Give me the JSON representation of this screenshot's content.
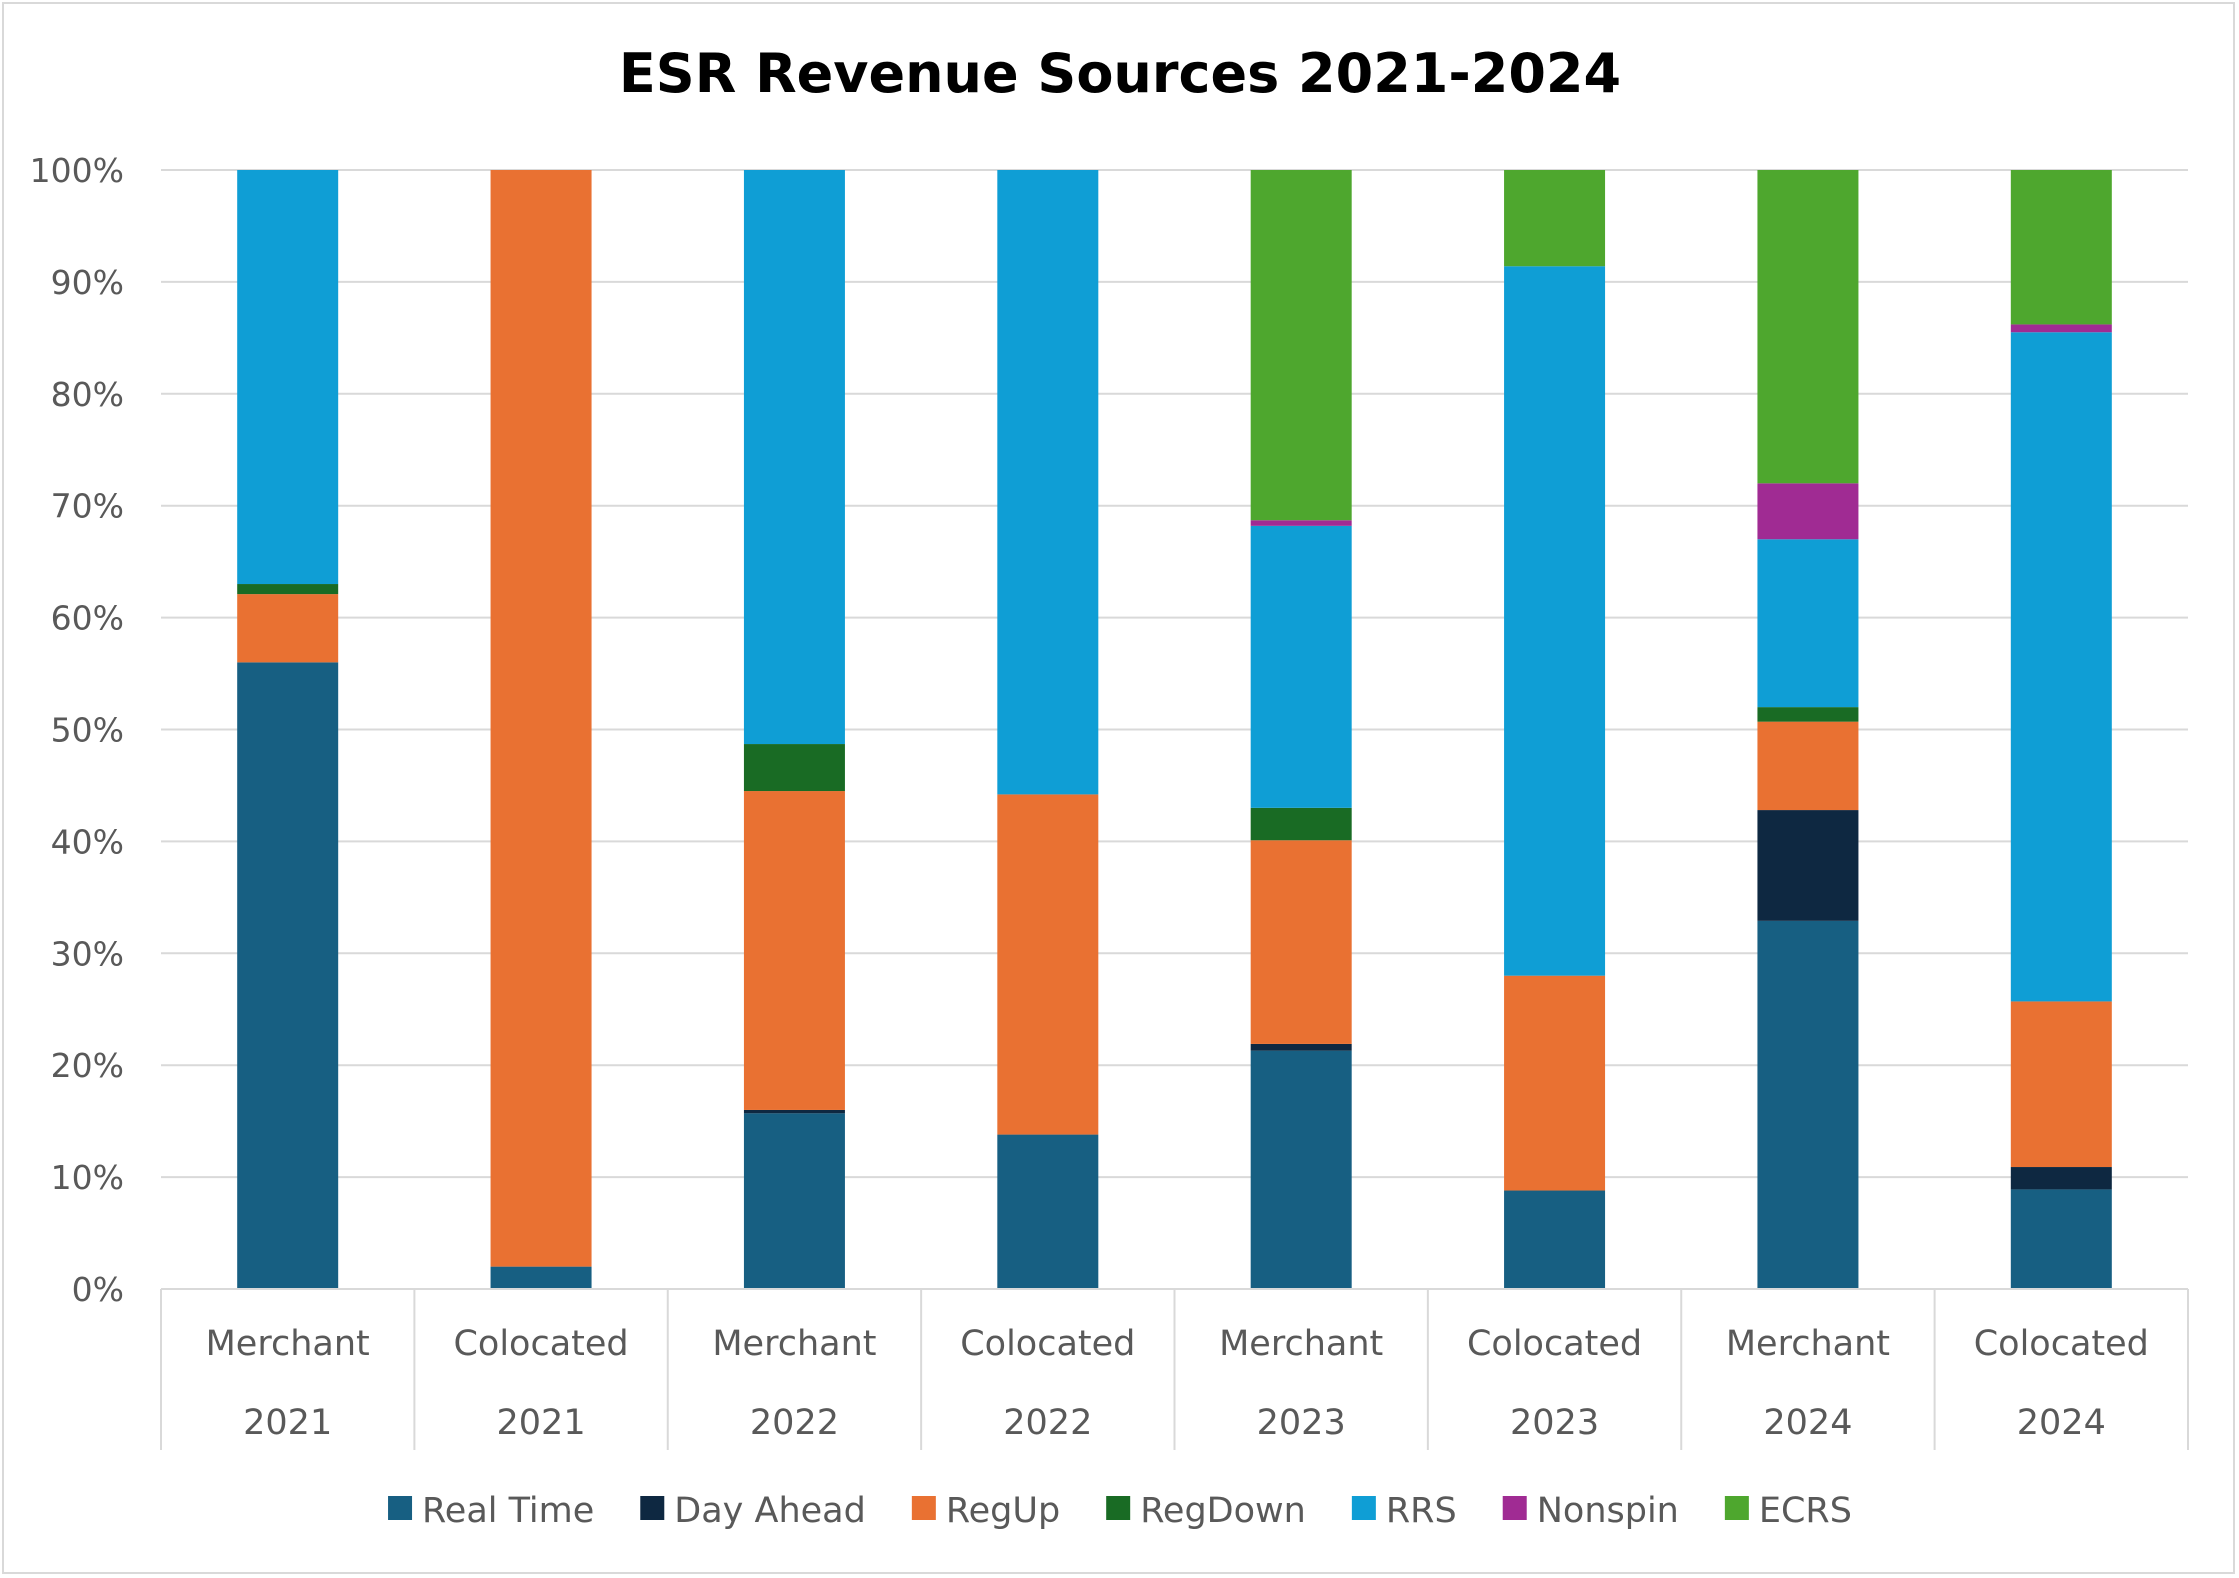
{
  "chart_data": {
    "type": "bar",
    "stacked": true,
    "title": "ESR Revenue Sources 2021-2024",
    "xlabel": "",
    "ylabel": "",
    "ylim": [
      0,
      1
    ],
    "y_ticks": [
      "0%",
      "10%",
      "20%",
      "30%",
      "40%",
      "50%",
      "60%",
      "70%",
      "80%",
      "90%",
      "100%"
    ],
    "grid": true,
    "legend_position": "bottom",
    "categories": [
      [
        "Merchant",
        "2021"
      ],
      [
        "Colocated",
        "2021"
      ],
      [
        "Merchant",
        "2022"
      ],
      [
        "Colocated",
        "2022"
      ],
      [
        "Merchant",
        "2023"
      ],
      [
        "Colocated",
        "2023"
      ],
      [
        "Merchant",
        "2024"
      ],
      [
        "Colocated",
        "2024"
      ]
    ],
    "series": [
      {
        "name": "Real Time",
        "color": "#175f82",
        "values": [
          0.56,
          0.02,
          0.157,
          0.138,
          0.213,
          0.088,
          0.329,
          0.089
        ]
      },
      {
        "name": "Day Ahead",
        "color": "#0e2841",
        "values": [
          0.0,
          0.0,
          0.003,
          0.0,
          0.006,
          0.0,
          0.099,
          0.02
        ]
      },
      {
        "name": "RegUp",
        "color": "#e97132",
        "values": [
          0.061,
          0.98,
          0.285,
          0.304,
          0.182,
          0.192,
          0.079,
          0.148
        ]
      },
      {
        "name": "RegDown",
        "color": "#196b24",
        "values": [
          0.009,
          0.0,
          0.042,
          0.0,
          0.029,
          0.0,
          0.013,
          0.0
        ]
      },
      {
        "name": "RRS",
        "color": "#0f9ed5",
        "values": [
          0.37,
          0.0,
          0.513,
          0.558,
          0.252,
          0.634,
          0.15,
          0.598
        ]
      },
      {
        "name": "Nonspin",
        "color": "#a02b93",
        "values": [
          0.0,
          0.0,
          0.0,
          0.0,
          0.005,
          0.0,
          0.05,
          0.007
        ]
      },
      {
        "name": "ECRS",
        "color": "#4ea72e",
        "values": [
          0.0,
          0.0,
          0.0,
          0.0,
          0.313,
          0.086,
          0.28,
          0.138
        ]
      }
    ]
  }
}
